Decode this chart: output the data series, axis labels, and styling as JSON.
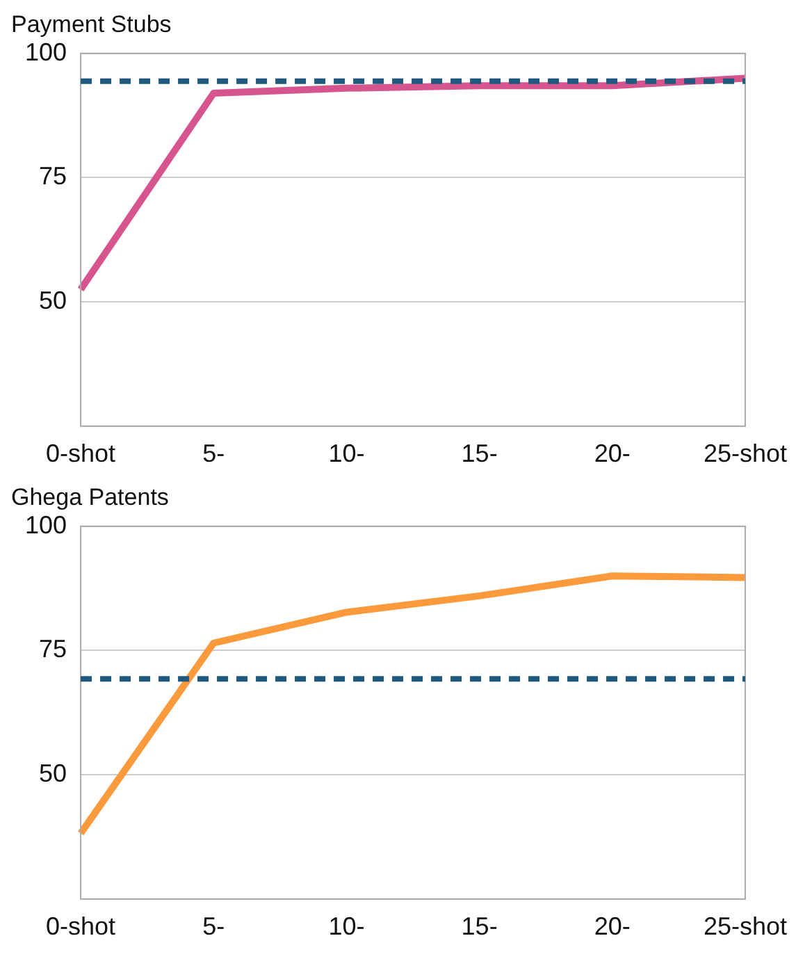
{
  "chart_data": [
    {
      "type": "line",
      "title": "Payment Stubs",
      "categories": [
        "0-shot",
        "5-",
        "10-",
        "15-",
        "20-",
        "25-shot"
      ],
      "series": [
        {
          "color": "#d6558f",
          "values": [
            52.5,
            92,
            93,
            93.5,
            93.5,
            95
          ]
        }
      ],
      "ylim": [
        25,
        100
      ],
      "yticks": [
        {
          "value": 25,
          "label": null
        },
        50,
        75,
        100
      ],
      "grid": "y",
      "ref_lines": [
        {
          "axis": "y",
          "value": 94.4,
          "color": "#1f5a7e",
          "line_style": "dashed"
        }
      ]
    },
    {
      "type": "line",
      "title": "Ghega Patents",
      "categories": [
        "0-shot",
        "5-",
        "10-",
        "15-",
        "20-",
        "25-shot"
      ],
      "series": [
        {
          "color": "#fb9a3c",
          "values": [
            38.2,
            76.5,
            82.7,
            86,
            90,
            89.7
          ]
        }
      ],
      "ylim": [
        25,
        100
      ],
      "yticks": [
        {
          "value": 25,
          "label": null
        },
        50,
        75,
        100
      ],
      "grid": "y",
      "ref_lines": [
        {
          "axis": "y",
          "value": 69.3,
          "color": "#1f5a7e",
          "line_style": "dashed"
        }
      ]
    }
  ]
}
